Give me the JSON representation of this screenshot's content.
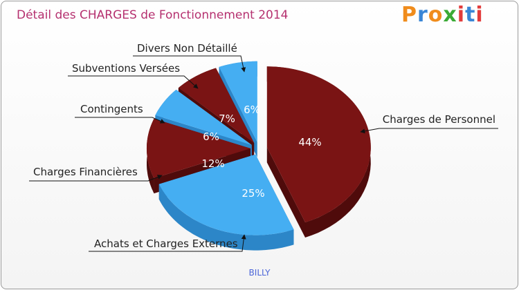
{
  "chart_data": {
    "type": "pie",
    "title": "Détail des CHARGES de Fonctionnement 2014",
    "subtitle": "BILLY",
    "slices": [
      {
        "label": "Charges de Personnel",
        "percent_label": "44%",
        "value": 44,
        "color": "#7a1414",
        "side": "#4f0b0b"
      },
      {
        "label": "Achats et Charges Externes",
        "percent_label": "25%",
        "value": 25,
        "color": "#45aef2",
        "side": "#2c86c8"
      },
      {
        "label": "Charges Financières",
        "percent_label": "12%",
        "value": 12,
        "color": "#7a1414",
        "side": "#4f0b0b"
      },
      {
        "label": "Contingents",
        "percent_label": "6%",
        "value": 6,
        "color": "#45aef2",
        "side": "#2c86c8"
      },
      {
        "label": "Subventions Versées",
        "percent_label": "7%",
        "value": 7,
        "color": "#7a1414",
        "side": "#4f0b0b"
      },
      {
        "label": "Divers Non Détaillé",
        "percent_label": "6%",
        "value": 6,
        "color": "#45aef2",
        "side": "#2c86c8"
      }
    ]
  },
  "logo": {
    "letters": [
      "P",
      "r",
      "o",
      "x",
      "i",
      "t",
      "i"
    ],
    "colors": [
      "#f08c1c",
      "#3a86d6",
      "#f08c1c",
      "#3aaa35",
      "#e23c3c",
      "#3a86d6",
      "#e23c3c"
    ]
  }
}
